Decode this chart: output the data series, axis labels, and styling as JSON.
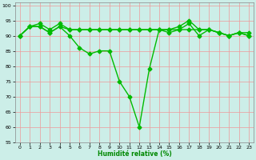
{
  "x": [
    0,
    1,
    2,
    3,
    4,
    5,
    6,
    7,
    8,
    9,
    10,
    11,
    12,
    13,
    14,
    15,
    16,
    17,
    18,
    19,
    20,
    21,
    22,
    23
  ],
  "line1": [
    90,
    93,
    93,
    91,
    93,
    90,
    86,
    84,
    85,
    85,
    75,
    70,
    60,
    79,
    92,
    91,
    92,
    94,
    90,
    92,
    91,
    90,
    91,
    90
  ],
  "line2": [
    90,
    93,
    93,
    91,
    93,
    92,
    92,
    92,
    92,
    92,
    92,
    92,
    92,
    92,
    92,
    92,
    92,
    92,
    92,
    92,
    91,
    90,
    91,
    90
  ],
  "line3": [
    90,
    93,
    94,
    92,
    94,
    92,
    92,
    92,
    92,
    92,
    92,
    92,
    92,
    92,
    92,
    92,
    93,
    95,
    92,
    92,
    91,
    90,
    91,
    91
  ],
  "line_color": "#00bb00",
  "background_color": "#cceee8",
  "grid_color": "#ee9999",
  "xlabel": "Humidité relative (%)",
  "xlabel_color": "#008800",
  "xlim": [
    -0.5,
    23.5
  ],
  "ylim": [
    55,
    101
  ],
  "yticks": [
    55,
    60,
    65,
    70,
    75,
    80,
    85,
    90,
    95,
    100
  ],
  "xticks": [
    0,
    1,
    2,
    3,
    4,
    5,
    6,
    7,
    8,
    9,
    10,
    11,
    12,
    13,
    14,
    15,
    16,
    17,
    18,
    19,
    20,
    21,
    22,
    23
  ],
  "marker": "D",
  "markersize": 2.5,
  "linewidth": 1.0
}
